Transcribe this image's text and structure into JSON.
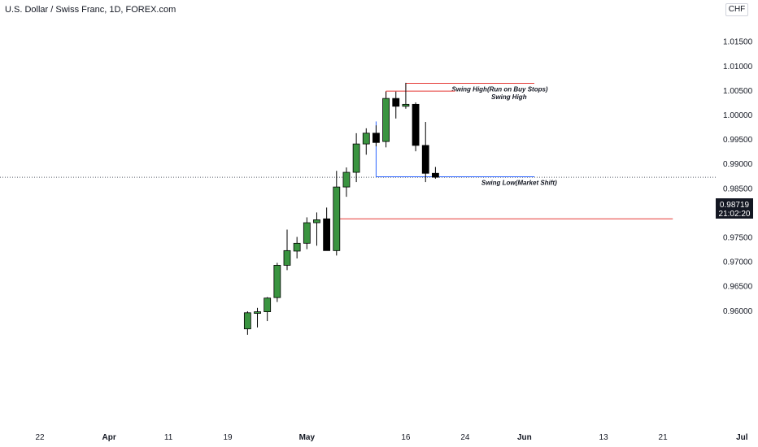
{
  "header": {
    "title": "U.S. Dollar / Swiss Franc, 1D, FOREX.com",
    "currency": "CHF"
  },
  "price_label": {
    "price": "0.98719",
    "countdown": "21:02:20"
  },
  "chart_data": {
    "type": "candlestick",
    "title": "U.S. Dollar / Swiss Franc, 1D, FOREX.com",
    "currency": "CHF",
    "last_price": 0.98719,
    "ylim": [
      0.955,
      1.015
    ],
    "y_ticks": [
      {
        "value": 0.96,
        "label": "0.96000"
      },
      {
        "value": 0.965,
        "label": "0.96500"
      },
      {
        "value": 0.97,
        "label": "0.97000"
      },
      {
        "value": 0.975,
        "label": "0.97500"
      },
      {
        "value": 0.98,
        "label": "0.98000"
      },
      {
        "value": 0.985,
        "label": "0.98500"
      },
      {
        "value": 0.99,
        "label": "0.99000"
      },
      {
        "value": 0.995,
        "label": "0.99500"
      },
      {
        "value": 1.0,
        "label": "1.00000"
      },
      {
        "value": 1.005,
        "label": "1.00500"
      },
      {
        "value": 1.01,
        "label": "1.01000"
      },
      {
        "value": 1.015,
        "label": "1.01500"
      }
    ],
    "x_ticks": [
      {
        "label": "22",
        "bold": false,
        "index": 0
      },
      {
        "label": "Apr",
        "bold": true,
        "index": 7
      },
      {
        "label": "11",
        "bold": false,
        "index": 13
      },
      {
        "label": "19",
        "bold": false,
        "index": 19
      },
      {
        "label": "May",
        "bold": true,
        "index": 27
      },
      {
        "label": "16",
        "bold": false,
        "index": 37
      },
      {
        "label": "24",
        "bold": false,
        "index": 43
      },
      {
        "label": "Jun",
        "bold": true,
        "index": 49
      },
      {
        "label": "13",
        "bold": false,
        "index": 57
      },
      {
        "label": "21",
        "bold": false,
        "index": 63
      },
      {
        "label": "Jul",
        "bold": true,
        "index": 71
      }
    ],
    "candles": [
      {
        "index": 21,
        "open": 0.9562,
        "high": 0.9598,
        "low": 0.955,
        "close": 0.9595
      },
      {
        "index": 22,
        "open": 0.9595,
        "high": 0.9605,
        "low": 0.9565,
        "close": 0.9597
      },
      {
        "index": 23,
        "open": 0.9597,
        "high": 0.9627,
        "low": 0.9578,
        "close": 0.9625
      },
      {
        "index": 24,
        "open": 0.9626,
        "high": 0.9697,
        "low": 0.9617,
        "close": 0.9692
      },
      {
        "index": 25,
        "open": 0.9692,
        "high": 0.9765,
        "low": 0.9682,
        "close": 0.9722
      },
      {
        "index": 26,
        "open": 0.9721,
        "high": 0.975,
        "low": 0.9706,
        "close": 0.9737
      },
      {
        "index": 27,
        "open": 0.9737,
        "high": 0.979,
        "low": 0.9725,
        "close": 0.9779
      },
      {
        "index": 28,
        "open": 0.9779,
        "high": 0.98,
        "low": 0.9732,
        "close": 0.9785
      },
      {
        "index": 29,
        "open": 0.9787,
        "high": 0.981,
        "low": 0.9722,
        "close": 0.9722
      },
      {
        "index": 30,
        "open": 0.9722,
        "high": 0.9885,
        "low": 0.9712,
        "close": 0.9852
      },
      {
        "index": 31,
        "open": 0.9852,
        "high": 0.9892,
        "low": 0.9832,
        "close": 0.9882
      },
      {
        "index": 32,
        "open": 0.9882,
        "high": 0.9962,
        "low": 0.9862,
        "close": 0.994
      },
      {
        "index": 33,
        "open": 0.994,
        "high": 0.9972,
        "low": 0.9918,
        "close": 0.9962
      },
      {
        "index": 34,
        "open": 0.9962,
        "high": 0.9978,
        "low": 0.9935,
        "close": 0.9943
      },
      {
        "index": 35,
        "open": 0.9945,
        "high": 1.0047,
        "low": 0.9933,
        "close": 1.0033
      },
      {
        "index": 36,
        "open": 1.0033,
        "high": 1.0047,
        "low": 0.9992,
        "close": 1.0017
      },
      {
        "index": 37,
        "open": 1.0017,
        "high": 1.0065,
        "low": 1.0012,
        "close": 1.0021
      },
      {
        "index": 38,
        "open": 1.0021,
        "high": 1.0025,
        "low": 0.9925,
        "close": 0.9937
      },
      {
        "index": 39,
        "open": 0.9937,
        "high": 0.9985,
        "low": 0.9862,
        "close": 0.988
      },
      {
        "index": 40,
        "open": 0.988,
        "high": 0.9893,
        "low": 0.9869,
        "close": 0.9872
      }
    ],
    "annotations": [
      {
        "type": "hline",
        "price": 1.0064,
        "from_index": 37,
        "to_index": 50,
        "color": "#e53935",
        "label": "Swing High(Run on Buy Stops)",
        "label_index": 40,
        "label_above": true
      },
      {
        "type": "hline",
        "price": 1.0048,
        "from_index": 35,
        "to_index": 42,
        "color": "#e53935",
        "label": "Swing High",
        "label_index": 44,
        "label_above": false
      },
      {
        "type": "hline",
        "price": 0.9873,
        "from_index": 34,
        "to_index": 50,
        "color": "#2962ff",
        "label": "Swing Low(Market Shift)",
        "label_index": 43,
        "label_above": false
      },
      {
        "type": "hline",
        "price": 0.9787,
        "from_index": 30,
        "to_index": 64,
        "color": "#e53935",
        "label": "",
        "label_index": 0,
        "label_above": false
      }
    ],
    "colors": {
      "up": "#3a9440",
      "down": "#000000",
      "wick": "#000000"
    }
  }
}
